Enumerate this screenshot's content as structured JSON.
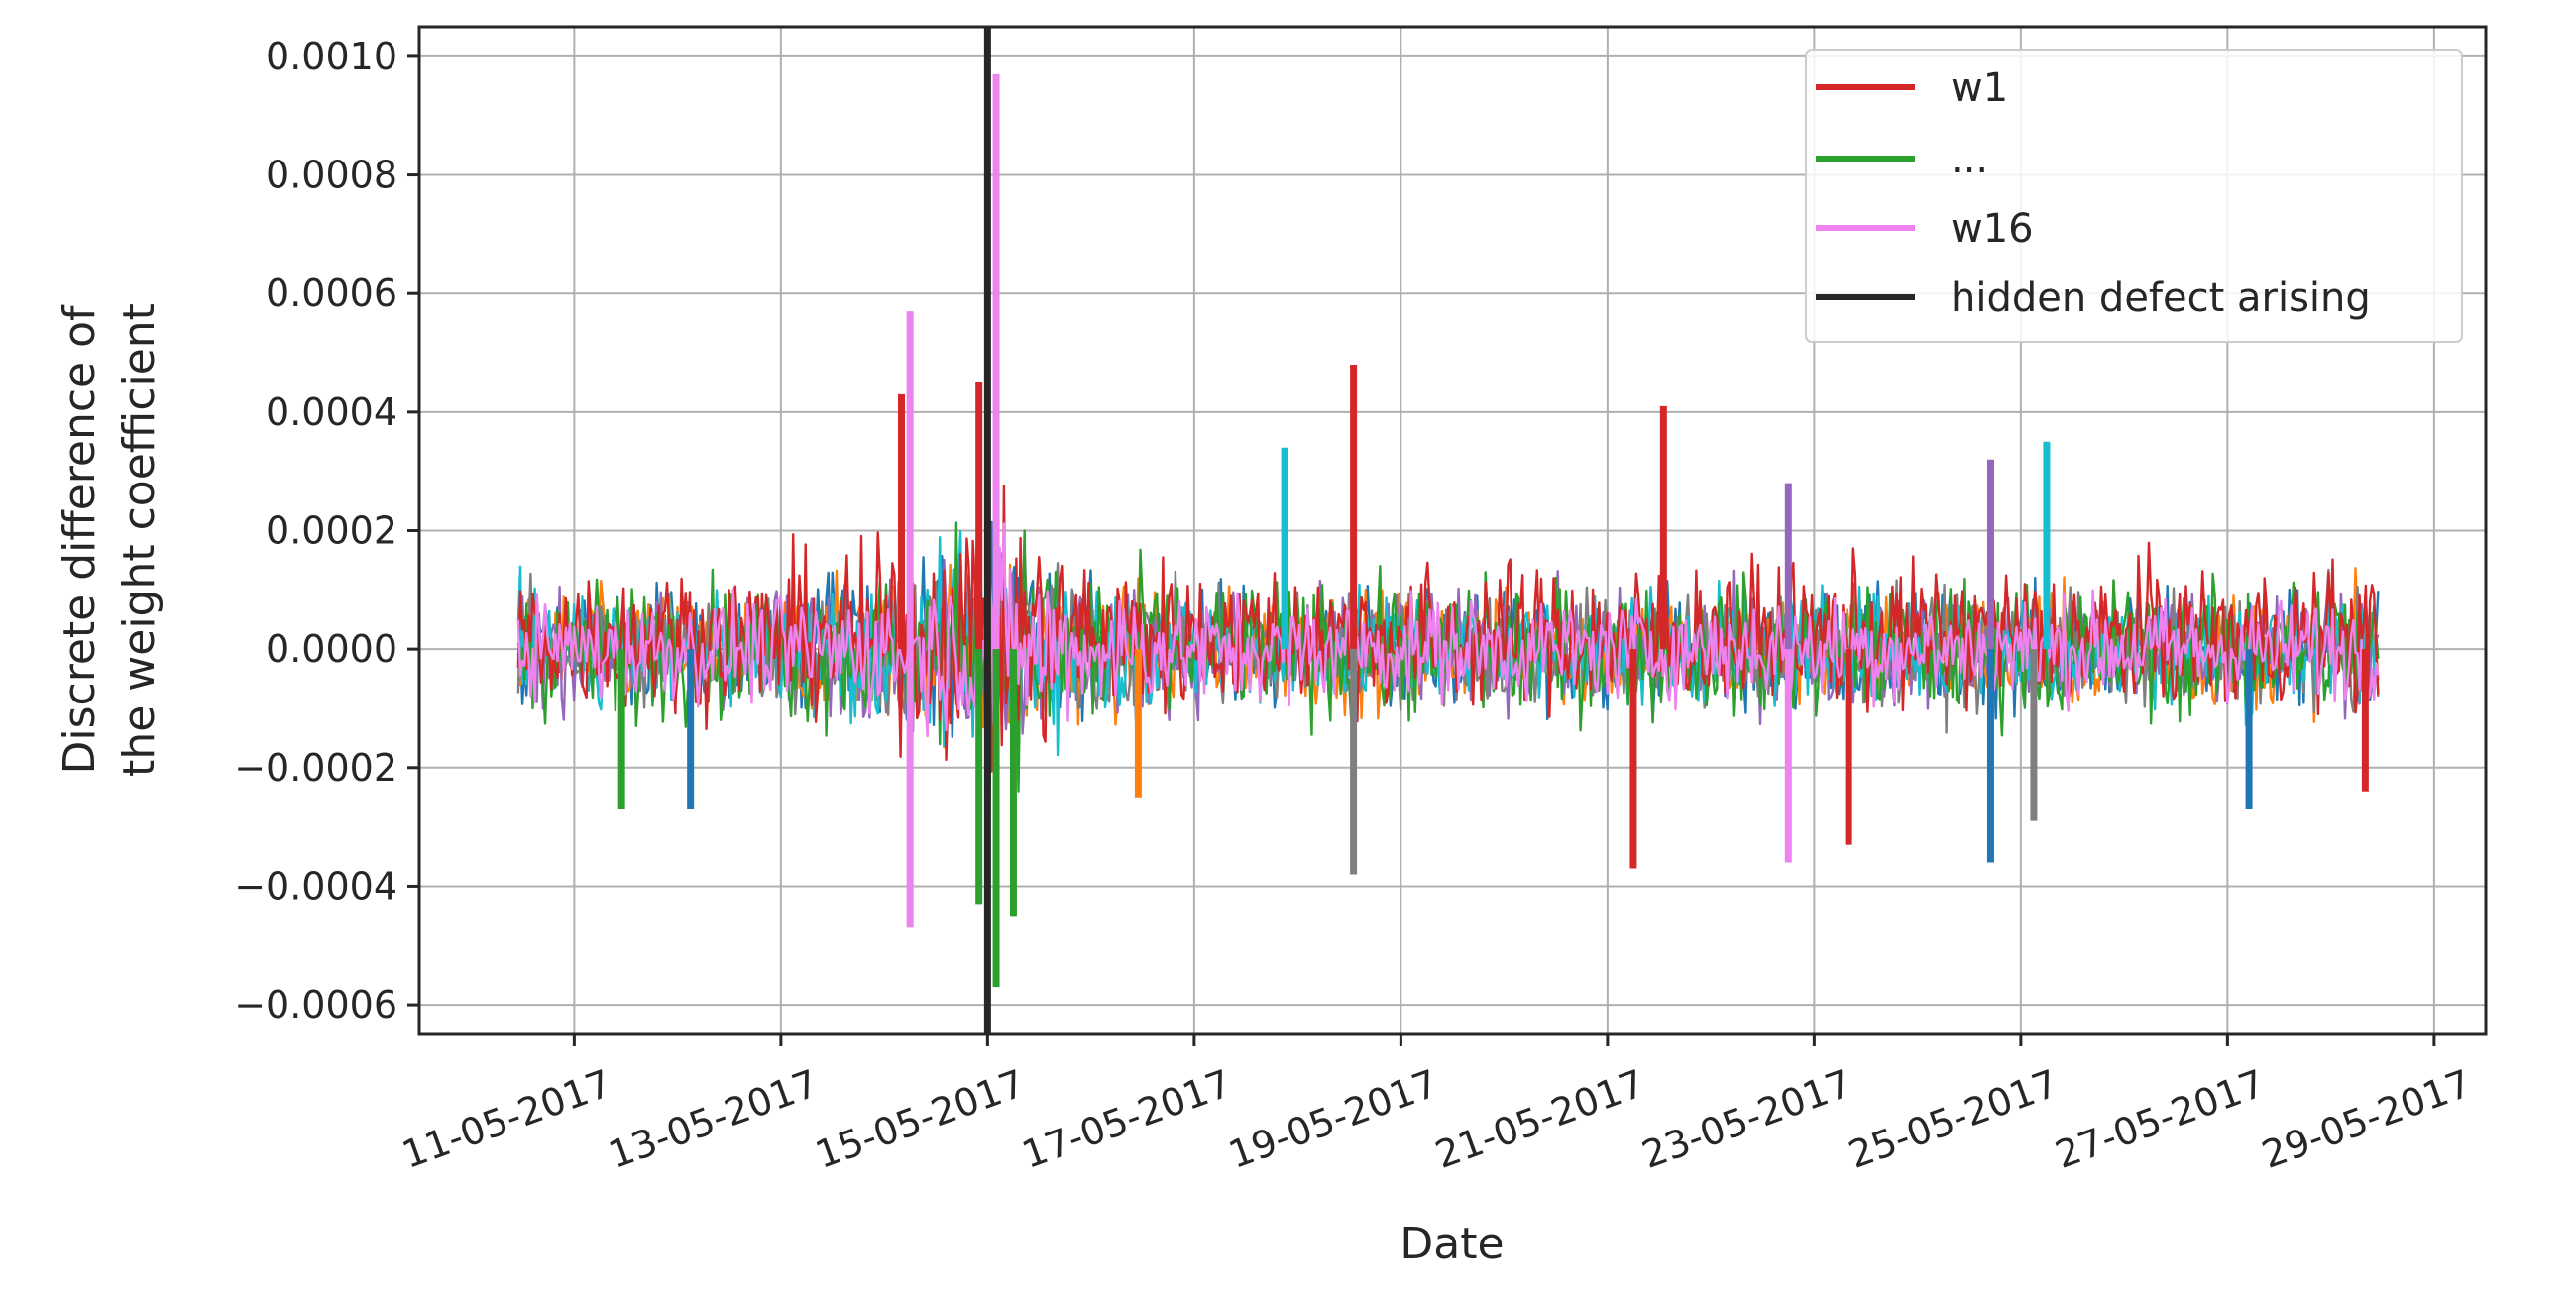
{
  "chart_data": {
    "type": "line",
    "title": "",
    "xlabel": "Date",
    "ylabel_lines": [
      "Discrete difference of",
      "the weight coefficient"
    ],
    "xlim": [
      "2017-05-09T12:00",
      "2017-05-29T12:00"
    ],
    "ylim": [
      -0.00065,
      0.00105
    ],
    "grid": true,
    "legend_position": "top-right",
    "x_ticks": [
      "11-05-2017",
      "13-05-2017",
      "15-05-2017",
      "17-05-2017",
      "19-05-2017",
      "21-05-2017",
      "23-05-2017",
      "25-05-2017",
      "27-05-2017",
      "29-05-2017"
    ],
    "y_ticks": [
      "0.0010",
      "0.0008",
      "0.0006",
      "0.0004",
      "0.0002",
      "0.0000",
      "−0.0002",
      "−0.0004",
      "−0.0006"
    ],
    "y_tick_values": [
      0.001,
      0.0008,
      0.0006,
      0.0004,
      0.0002,
      0,
      -0.0002,
      -0.0004,
      -0.0006
    ],
    "series": [
      {
        "name": "w1",
        "color": "#d62728"
      },
      {
        "name": "...",
        "color": "#2ca02c"
      },
      {
        "name": "w16",
        "color": "#ee82ee"
      }
    ],
    "unlabeled_series_colors": [
      "#1f77b4",
      "#ff7f0e",
      "#9467bd",
      "#7f7f7f",
      "#17becf"
    ],
    "vertical_marker": {
      "name": "hidden defect arising",
      "x": "2017-05-15T00:00",
      "color": "#262626"
    },
    "data_range": [
      "2017-05-10T11:00",
      "2017-05-28T11:00"
    ],
    "peaks": [
      {
        "x": "2017-05-14T06:00",
        "y": 0.00057,
        "color": "#ee82ee"
      },
      {
        "x": "2017-05-14T06:00",
        "y": -0.00047,
        "color": "#ee82ee"
      },
      {
        "x": "2017-05-15T02:00",
        "y": 0.00097,
        "color": "#ee82ee"
      },
      {
        "x": "2017-05-15T02:00",
        "y": -0.00057,
        "color": "#2ca02c"
      },
      {
        "x": "2017-05-15T06:00",
        "y": -0.00045,
        "color": "#2ca02c"
      },
      {
        "x": "2017-05-14T22:00",
        "y": 0.00045,
        "color": "#d62728"
      },
      {
        "x": "2017-05-14T22:00",
        "y": -0.00043,
        "color": "#2ca02c"
      },
      {
        "x": "2017-05-14T04:00",
        "y": 0.00043,
        "color": "#d62728"
      },
      {
        "x": "2017-05-16T11:00",
        "y": -0.00025,
        "color": "#ff7f0e"
      },
      {
        "x": "2017-05-18T13:00",
        "y": 0.00048,
        "color": "#d62728"
      },
      {
        "x": "2017-05-18T13:00",
        "y": -0.00038,
        "color": "#7f7f7f"
      },
      {
        "x": "2017-05-21T13:00",
        "y": 0.00041,
        "color": "#d62728"
      },
      {
        "x": "2017-05-21T06:00",
        "y": -0.00037,
        "color": "#d62728"
      },
      {
        "x": "2017-05-22T18:00",
        "y": 0.00028,
        "color": "#9467bd"
      },
      {
        "x": "2017-05-22T18:00",
        "y": -0.00036,
        "color": "#ee82ee"
      },
      {
        "x": "2017-05-23T08:00",
        "y": -0.00033,
        "color": "#d62728"
      },
      {
        "x": "2017-05-24T17:00",
        "y": 0.00032,
        "color": "#9467bd"
      },
      {
        "x": "2017-05-24T17:00",
        "y": -0.00036,
        "color": "#1f77b4"
      },
      {
        "x": "2017-05-25T06:00",
        "y": 0.00035,
        "color": "#17becf"
      },
      {
        "x": "2017-05-25T03:00",
        "y": -0.00029,
        "color": "#7f7f7f"
      },
      {
        "x": "2017-05-11T11:00",
        "y": -0.00027,
        "color": "#2ca02c"
      },
      {
        "x": "2017-05-12T03:00",
        "y": -0.00027,
        "color": "#1f77b4"
      },
      {
        "x": "2017-05-17T21:00",
        "y": 0.00034,
        "color": "#17becf"
      },
      {
        "x": "2017-05-27T05:00",
        "y": -0.00027,
        "color": "#1f77b4"
      },
      {
        "x": "2017-05-28T08:00",
        "y": -0.00024,
        "color": "#d62728"
      }
    ]
  }
}
